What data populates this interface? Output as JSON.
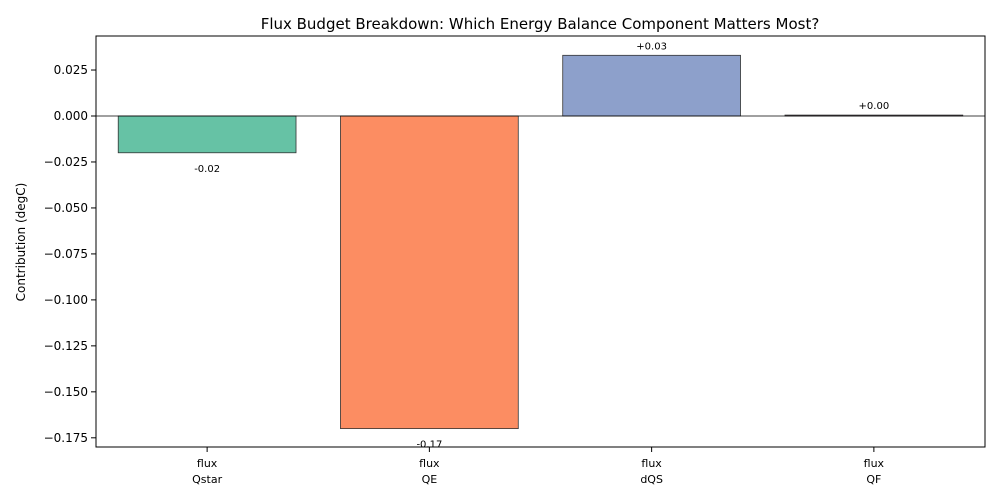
{
  "chart_data": {
    "type": "bar",
    "title": "Flux Budget Breakdown: Which Energy Balance Component Matters Most?",
    "xlabel": "",
    "ylabel": "Contribution (degC)",
    "ylim": [
      -0.18,
      0.0435
    ],
    "yticks": [
      0.025,
      0.0,
      -0.025,
      -0.05,
      -0.075,
      -0.1,
      -0.125,
      -0.15,
      -0.175
    ],
    "ytick_labels": [
      "0.025",
      "0.000",
      "−0.025",
      "−0.050",
      "−0.075",
      "−0.100",
      "−0.125",
      "−0.150",
      "−0.175"
    ],
    "categories": [
      {
        "line1": "flux",
        "line2": "Qstar"
      },
      {
        "line1": "flux",
        "line2": "QE"
      },
      {
        "line1": "flux",
        "line2": "dQS"
      },
      {
        "line1": "flux",
        "line2": "QF"
      }
    ],
    "values": [
      -0.02,
      -0.17,
      0.033,
      0.0005
    ],
    "data_labels": [
      "-0.02",
      "-0.17",
      "+0.03",
      "+0.00"
    ],
    "colors": [
      "#66c2a5",
      "#fc8d62",
      "#8da0cb",
      "#e78ac3"
    ],
    "grid": false,
    "legend": "none"
  }
}
